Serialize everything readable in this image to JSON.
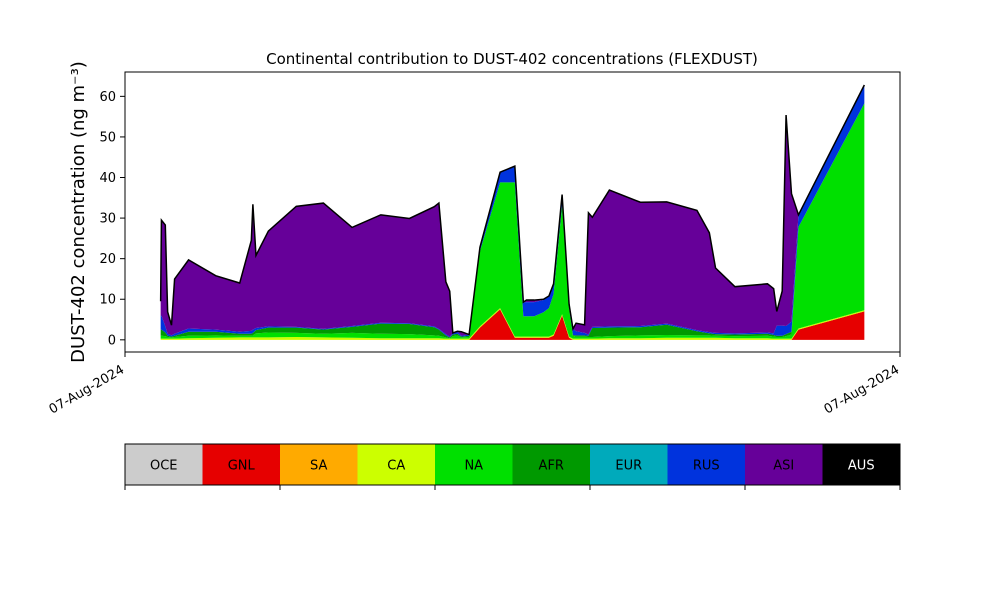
{
  "chart_data": {
    "type": "area",
    "stacked": true,
    "title": "Continental contribution to DUST-402 concentrations (FLEXDUST)",
    "ylabel": "DUST-402 concentration (ng m⁻³)",
    "xlabel": "",
    "ylim": [
      -3,
      66
    ],
    "xlim": [
      0,
      1
    ],
    "yticks": [
      0,
      10,
      20,
      30,
      40,
      50,
      60
    ],
    "xtick_labels": [
      "07-Aug-2024",
      "07-Aug-2024"
    ],
    "grid": false,
    "legend_placement": "bottom colorbar",
    "x": [
      0.046,
      0.047,
      0.052,
      0.055,
      0.06,
      0.064,
      0.082,
      0.117,
      0.148,
      0.163,
      0.165,
      0.169,
      0.185,
      0.221,
      0.256,
      0.293,
      0.33,
      0.367,
      0.399,
      0.405,
      0.414,
      0.419,
      0.423,
      0.429,
      0.434,
      0.444,
      0.458,
      0.484,
      0.503,
      0.514,
      0.518,
      0.528,
      0.54,
      0.547,
      0.553,
      0.564,
      0.573,
      0.578,
      0.582,
      0.593,
      0.598,
      0.603,
      0.625,
      0.665,
      0.699,
      0.738,
      0.754,
      0.762,
      0.787,
      0.829,
      0.837,
      0.841,
      0.848,
      0.853,
      0.86,
      0.869,
      0.954
    ],
    "series": [
      {
        "name": "GNL",
        "color": "#e60000",
        "values": [
          0,
          0,
          0,
          0,
          0,
          0,
          0,
          0,
          0,
          0,
          0,
          0,
          0,
          0,
          0,
          0,
          0,
          0,
          0,
          0,
          0,
          0,
          0,
          0,
          0,
          0,
          3,
          7.5,
          0.5,
          0.5,
          0.5,
          0.5,
          0.5,
          0.5,
          1.0,
          6.0,
          0.5,
          0,
          0,
          0,
          0,
          0,
          0,
          0,
          0,
          0,
          0,
          0,
          0,
          0,
          0,
          0,
          0,
          0,
          0,
          2.5,
          7.0
        ]
      },
      {
        "name": "SA",
        "color": "#ffaa00",
        "values": [
          0,
          0,
          0,
          0,
          0,
          0,
          0,
          0,
          0,
          0,
          0,
          0,
          0,
          0,
          0,
          0,
          0,
          0,
          0,
          0,
          0,
          0,
          0,
          0,
          0,
          0,
          0,
          0,
          0,
          0,
          0,
          0,
          0,
          0,
          0,
          0,
          0,
          0,
          0,
          0,
          0,
          0,
          0,
          0,
          0,
          0,
          0,
          0,
          0,
          0,
          0,
          0,
          0,
          0,
          0,
          0,
          0
        ]
      },
      {
        "name": "CA",
        "color": "#ccff00",
        "values": [
          0.3,
          0.3,
          0.3,
          0.3,
          0.3,
          0.3,
          0.4,
          0.5,
          0.6,
          0.6,
          0.6,
          0.6,
          0.6,
          0.7,
          0.6,
          0.5,
          0.4,
          0.4,
          0.4,
          0.4,
          0.3,
          0.3,
          0.3,
          0.3,
          0.3,
          0.3,
          0.3,
          0.3,
          0.3,
          0.3,
          0.3,
          0.3,
          0.3,
          0.3,
          0.3,
          0.3,
          0.3,
          0.3,
          0.3,
          0.3,
          0.3,
          0.3,
          0.4,
          0.4,
          0.5,
          0.5,
          0.5,
          0.5,
          0.4,
          0.4,
          0.3,
          0.3,
          0.3,
          0.3,
          0.3,
          0.3,
          0.3
        ]
      },
      {
        "name": "NA",
        "color": "#00e000",
        "values": [
          0.7,
          0.7,
          0.6,
          0.4,
          0.3,
          0.4,
          0.6,
          0.6,
          0.4,
          0.4,
          0.5,
          1.0,
          1.2,
          1.0,
          0.9,
          1.2,
          1.1,
          1.0,
          0.7,
          0.6,
          0.3,
          0.1,
          0.6,
          0.8,
          0.3,
          0.4,
          18.5,
          31.0,
          38.0,
          5.0,
          5.0,
          5.0,
          6.0,
          7.0,
          10.0,
          27.0,
          7.0,
          0.7,
          0.5,
          0.5,
          0.4,
          0.4,
          0.5,
          0.7,
          0.7,
          0.6,
          0.6,
          0.5,
          0.5,
          0.6,
          0.5,
          0.4,
          0.4,
          0.6,
          1.0,
          25.0,
          51.0
        ]
      },
      {
        "name": "AFR",
        "color": "#009900",
        "values": [
          1.5,
          1.5,
          0.9,
          0.3,
          0.2,
          0.3,
          1.0,
          0.9,
          0.5,
          0.5,
          0.6,
          0.8,
          1.2,
          1.3,
          1.0,
          1.5,
          2.5,
          2.5,
          2.0,
          1.5,
          0.5,
          0.2,
          0.4,
          0.4,
          0.2,
          0.3,
          0,
          0,
          0,
          0,
          0,
          0,
          0,
          0,
          0,
          0,
          0,
          0.2,
          0.3,
          0.3,
          0.3,
          2.2,
          2.1,
          2.0,
          2.5,
          1.0,
          0.5,
          0.4,
          0.4,
          0.5,
          0.4,
          0.3,
          0.3,
          0.5,
          0.7,
          0,
          0
        ]
      },
      {
        "name": "EUR",
        "color": "#00aabb",
        "values": [
          0,
          0,
          0,
          0,
          0,
          0,
          0,
          0,
          0,
          0,
          0,
          0,
          0,
          0,
          0,
          0,
          0,
          0,
          0,
          0,
          0,
          0,
          0,
          0,
          0,
          0,
          0,
          0,
          0,
          0,
          0,
          0,
          0,
          0,
          0,
          0,
          0,
          0,
          0,
          0,
          0,
          0,
          0,
          0,
          0,
          0,
          0,
          0,
          0,
          0,
          0,
          0,
          0,
          0,
          0,
          0,
          0
        ]
      },
      {
        "name": "RUS",
        "color": "#0033dd",
        "values": [
          3.5,
          3.5,
          1.5,
          0.5,
          0.3,
          0.5,
          0.8,
          0.5,
          0.5,
          0.7,
          0.8,
          0.5,
          0.3,
          0.2,
          0.2,
          0.2,
          0.2,
          0.2,
          0.2,
          0.2,
          0.3,
          0.2,
          0.3,
          0.5,
          0.2,
          0.3,
          1.0,
          2.5,
          4.0,
          3.5,
          3.5,
          3.5,
          3.0,
          3.0,
          2.5,
          2.5,
          1.0,
          1.5,
          1.0,
          0.6,
          0.3,
          0.3,
          0.3,
          0.3,
          0.3,
          0.3,
          0.3,
          0.3,
          0.3,
          0.3,
          0.4,
          2.5,
          2.5,
          2.0,
          2.5,
          3.0,
          4.5
        ]
      },
      {
        "name": "ASI",
        "color": "#660099",
        "values": [
          3.5,
          23.5,
          25.0,
          5.4,
          2.5,
          13.5,
          16.9,
          13.3,
          12.0,
          22.3,
          30.9,
          17.9,
          23.5,
          29.7,
          31.0,
          24.3,
          26.6,
          25.8,
          29.5,
          31.0,
          12.9,
          11.2,
          0.1,
          0.1,
          1.0,
          0,
          0,
          0,
          0,
          0,
          0.5,
          0.5,
          0.2,
          0,
          0,
          0,
          0,
          0,
          2.0,
          2.0,
          30.0,
          27.0,
          33.6,
          30.5,
          30.0,
          29.5,
          24.5,
          16.0,
          11.5,
          12.0,
          11.0,
          3.5,
          8.5,
          52.0,
          31.5,
          0,
          0
        ]
      },
      {
        "name": "AUS",
        "color": "#000000",
        "values": [
          0,
          0,
          0,
          0,
          0,
          0,
          0,
          0,
          0,
          0,
          0,
          0,
          0,
          0,
          0,
          0,
          0,
          0,
          0,
          0,
          0,
          0,
          0,
          0,
          0,
          0,
          0,
          0,
          0,
          0,
          0,
          0,
          0,
          0,
          0,
          0,
          0,
          0,
          0,
          0,
          0,
          0,
          0,
          0,
          0,
          0,
          0,
          0,
          0,
          0,
          0,
          0,
          0,
          0,
          0,
          0,
          0
        ]
      }
    ],
    "colorbar": [
      {
        "label": "OCE",
        "color": "#cccccc"
      },
      {
        "label": "GNL",
        "color": "#e60000"
      },
      {
        "label": "SA",
        "color": "#ffaa00"
      },
      {
        "label": "CA",
        "color": "#ccff00"
      },
      {
        "label": "NA",
        "color": "#00e000"
      },
      {
        "label": "AFR",
        "color": "#009900"
      },
      {
        "label": "EUR",
        "color": "#00aabb"
      },
      {
        "label": "RUS",
        "color": "#0033dd"
      },
      {
        "label": "ASI",
        "color": "#660099"
      },
      {
        "label": "AUS",
        "color": "#000000"
      }
    ]
  }
}
